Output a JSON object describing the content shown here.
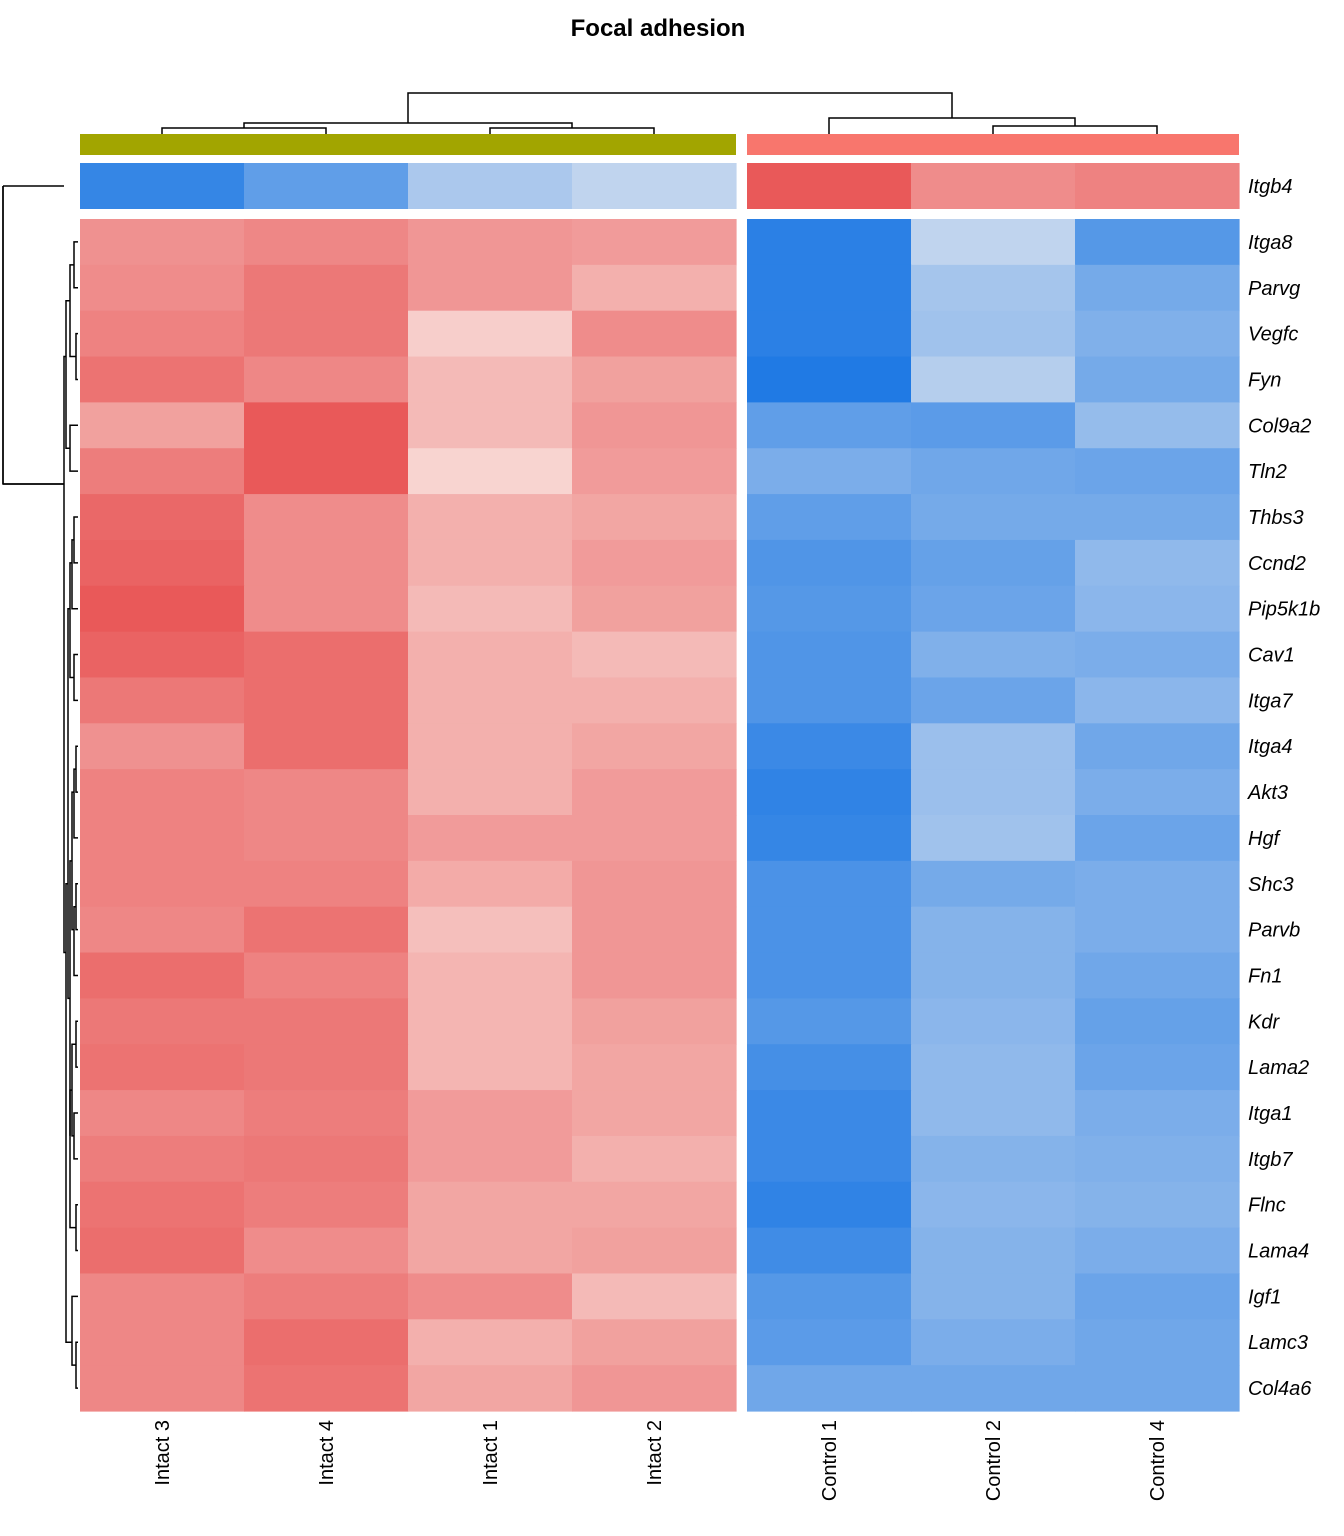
{
  "chart_data": {
    "type": "heatmap",
    "title": "Focal adhesion",
    "columns": [
      "Intact 3",
      "Intact 4",
      "Intact 1",
      "Intact 2",
      "Control 1",
      "Control 2",
      "Control 4"
    ],
    "column_groups": [
      {
        "members": [
          "Intact 3",
          "Intact 4",
          "Intact 1",
          "Intact 2"
        ],
        "color": "#a2a500"
      },
      {
        "members": [
          "Control 1",
          "Control 2",
          "Control 4"
        ],
        "color": "#f8766d"
      }
    ],
    "top_row": "Itgb4",
    "rows": [
      "Itga8",
      "Parvg",
      "Vegfc",
      "Fyn",
      "Col9a2",
      "Tln2",
      "Thbs3",
      "Ccnd2",
      "Pip5k1b",
      "Cav1",
      "Itga7",
      "Itga4",
      "Akt3",
      "Hgf",
      "Shc3",
      "Parvb",
      "Fn1",
      "Kdr",
      "Lama2",
      "Itga1",
      "Itgb7",
      "Flnc",
      "Lama4",
      "Igf1",
      "Lamc3",
      "Col4a6"
    ],
    "top_row_values": [
      -1.6,
      -1.2,
      -0.5,
      -0.3,
      1.4,
      0.9,
      1.0
    ],
    "values": [
      [
        0.85,
        0.95,
        0.8,
        0.75,
        -1.7,
        -0.3,
        -1.3
      ],
      [
        0.9,
        1.1,
        0.8,
        0.55,
        -1.7,
        -0.55,
        -1.0
      ],
      [
        1.0,
        1.1,
        0.25,
        0.9,
        -1.7,
        -0.6,
        -0.9
      ],
      [
        1.15,
        0.95,
        0.45,
        0.7,
        -1.8,
        -0.4,
        -1.0
      ],
      [
        0.7,
        1.4,
        0.45,
        0.8,
        -1.2,
        -1.25,
        -0.7
      ],
      [
        1.05,
        1.4,
        0.2,
        0.75,
        -0.95,
        -1.05,
        -1.1
      ],
      [
        1.25,
        0.9,
        0.55,
        0.65,
        -1.2,
        -1.0,
        -1.0
      ],
      [
        1.3,
        0.9,
        0.55,
        0.75,
        -1.35,
        -1.15,
        -0.75
      ],
      [
        1.4,
        0.9,
        0.45,
        0.7,
        -1.3,
        -1.1,
        -0.8
      ],
      [
        1.3,
        1.2,
        0.55,
        0.45,
        -1.35,
        -0.9,
        -0.95
      ],
      [
        1.1,
        1.2,
        0.55,
        0.55,
        -1.35,
        -1.1,
        -0.8
      ],
      [
        0.85,
        1.2,
        0.55,
        0.65,
        -1.55,
        -0.65,
        -1.05
      ],
      [
        1.0,
        0.95,
        0.55,
        0.75,
        -1.65,
        -0.65,
        -0.95
      ],
      [
        1.0,
        0.95,
        0.75,
        0.75,
        -1.6,
        -0.6,
        -1.1
      ],
      [
        1.0,
        1.0,
        0.6,
        0.8,
        -1.4,
        -1.0,
        -0.95
      ],
      [
        0.95,
        1.15,
        0.4,
        0.8,
        -1.4,
        -0.85,
        -0.95
      ],
      [
        1.2,
        1.0,
        0.5,
        0.8,
        -1.4,
        -0.85,
        -1.05
      ],
      [
        1.1,
        1.1,
        0.5,
        0.7,
        -1.3,
        -0.8,
        -1.15
      ],
      [
        1.15,
        1.1,
        0.5,
        0.65,
        -1.45,
        -0.75,
        -1.1
      ],
      [
        0.95,
        1.05,
        0.75,
        0.65,
        -1.55,
        -0.75,
        -0.95
      ],
      [
        1.05,
        1.1,
        0.75,
        0.55,
        -1.55,
        -0.85,
        -0.9
      ],
      [
        1.15,
        1.05,
        0.65,
        0.65,
        -1.65,
        -0.8,
        -0.85
      ],
      [
        1.2,
        0.9,
        0.65,
        0.7,
        -1.5,
        -0.85,
        -0.95
      ],
      [
        0.95,
        1.05,
        0.9,
        0.45,
        -1.3,
        -0.85,
        -1.1
      ],
      [
        0.95,
        1.2,
        0.55,
        0.7,
        -1.25,
        -0.95,
        -1.05
      ],
      [
        0.95,
        1.15,
        0.65,
        0.8,
        -1.05,
        -1.05,
        -1.05
      ]
    ]
  }
}
